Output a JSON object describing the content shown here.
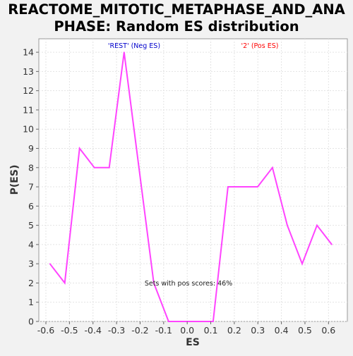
{
  "colors": {
    "page_background": "#f2f2f2",
    "plot_background": "#ffffff",
    "gridline": "#e3e3e3",
    "line": "#ff44ff",
    "neg_label": "#0000cc",
    "pos_label": "#ff0000",
    "annotation": "#222222"
  },
  "chart_data": {
    "type": "line",
    "title": "REACTOME_MITOTIC_METAPHASE_AND_ANAPHASE: Random ES distribution",
    "title_lines": [
      "REACTOME_MITOTIC_METAPHASE_AND_ANA",
      "PHASE: Random ES distribution"
    ],
    "xlabel": "ES",
    "ylabel": "P(ES)",
    "xlim": [
      -0.63,
      0.68
    ],
    "ylim": [
      0,
      14.7
    ],
    "x_ticks": [
      -0.6,
      -0.5,
      -0.4,
      -0.3,
      -0.2,
      -0.1,
      0.0,
      0.1,
      0.2,
      0.3,
      0.4,
      0.5,
      0.6
    ],
    "x_tick_labels": [
      "-0.6",
      "-0.5",
      "-0.4",
      "-0.3",
      "-0.2",
      "-0.1",
      "0.0",
      "0.1",
      "0.2",
      "0.3",
      "0.4",
      "0.5",
      "0.6"
    ],
    "y_ticks": [
      0,
      1,
      2,
      3,
      4,
      5,
      6,
      7,
      8,
      9,
      10,
      11,
      12,
      13,
      14
    ],
    "y_tick_labels": [
      "0",
      "1",
      "2",
      "3",
      "4",
      "5",
      "6",
      "7",
      "8",
      "9",
      "10",
      "11",
      "12",
      "13",
      "14"
    ],
    "grid": true,
    "series": [
      {
        "x": [
          -0.583,
          -0.52,
          -0.457,
          -0.394,
          -0.331,
          -0.268,
          -0.205,
          -0.142,
          -0.079,
          -0.016,
          0.047,
          0.11,
          0.173,
          0.236,
          0.299,
          0.362,
          0.425,
          0.488,
          0.551,
          0.614
        ],
        "y": [
          3,
          2,
          9,
          8,
          8,
          14,
          8,
          2,
          0,
          0,
          0,
          0,
          7,
          7,
          7,
          8,
          5,
          3,
          5,
          4
        ]
      }
    ],
    "annotations": {
      "neg_label": "'REST' (Neg ES)",
      "pos_label": "'2' (Pos ES)",
      "pos_scores": "Sets with pos scores: 46%"
    }
  }
}
